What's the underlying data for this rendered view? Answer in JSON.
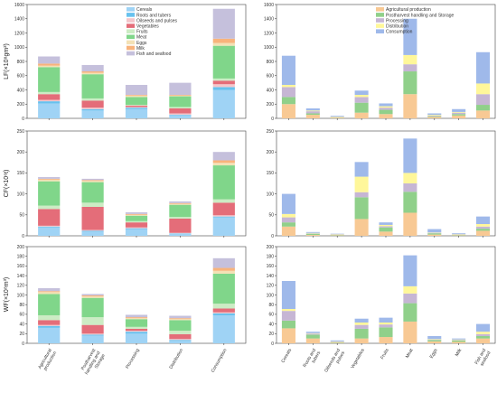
{
  "colors": {
    "Cereals": "#9fd3f5",
    "Roots and tubers": "#67c1ee",
    "Oilseeds and pulses": "#f4c6cb",
    "Vegetables": "#e46d79",
    "Fruits": "#ccecc4",
    "Meat": "#80d68a",
    "Eggs": "#f3e1b5",
    "Milk": "#f8b37b",
    "Fish and seafood": "#c5c0dc",
    "Agricultural production": "#f8c994",
    "Postharvest handling and Storage": "#90d08a",
    "Processing": "#c6b6d4",
    "Distribution": "#fff79a",
    "Consumption": "#9fb9ea"
  },
  "legends": {
    "left": [
      "Cereals",
      "Roots and tubers",
      "Oilseeds and pulses",
      "Vegetables",
      "Fruits",
      "Meat",
      "Eggs",
      "Milk",
      "Fish and seafood"
    ],
    "right": [
      "Agricultural production",
      "Postharvest handling and Storage",
      "Processing",
      "Distribution",
      "Consumption"
    ]
  },
  "row_labels": [
    "LF(×10⁸gm²)",
    "CF(×10⁶t)",
    "WF(×10⁸m³)"
  ],
  "chart_data": [
    {
      "type": "bar",
      "stacked": true,
      "categories": [
        "Agricultural production",
        "Postharvest handling and Storage",
        "Processing",
        "Distribution",
        "Consumption"
      ],
      "ylabel": "LF(×10⁸gm²)",
      "ylim": [
        0,
        1600
      ],
      "yticks": [
        0,
        200,
        400,
        600,
        800,
        1000,
        1200,
        1400,
        1600
      ],
      "series": [
        {
          "name": "Cereals",
          "values": [
            210,
            110,
            130,
            40,
            400
          ]
        },
        {
          "name": "Roots and tubers",
          "values": [
            30,
            20,
            20,
            10,
            40
          ]
        },
        {
          "name": "Oilseeds and pulses",
          "values": [
            20,
            20,
            10,
            20,
            40
          ]
        },
        {
          "name": "Vegetables",
          "values": [
            80,
            100,
            20,
            70,
            50
          ]
        },
        {
          "name": "Fruits",
          "values": [
            30,
            30,
            10,
            20,
            30
          ]
        },
        {
          "name": "Meat",
          "values": [
            350,
            340,
            110,
            150,
            460
          ]
        },
        {
          "name": "Eggs",
          "values": [
            20,
            20,
            20,
            10,
            40
          ]
        },
        {
          "name": "Milk",
          "values": [
            30,
            20,
            10,
            10,
            60
          ]
        },
        {
          "name": "Fish and seafood",
          "values": [
            100,
            90,
            140,
            170,
            420
          ]
        }
      ]
    },
    {
      "type": "bar",
      "stacked": true,
      "categories": [
        "Cereals",
        "Roots and tubers",
        "Oilseeds and pulses",
        "Vegetables",
        "Fruits",
        "Meat",
        "Eggs",
        "Milk",
        "Fish and seafood"
      ],
      "ylim": [
        0,
        1600
      ],
      "yticks": [
        0,
        200,
        400,
        600,
        800,
        1000,
        1200,
        1400,
        1600
      ],
      "series": [
        {
          "name": "Agricultural production",
          "values": [
            200,
            50,
            10,
            80,
            60,
            340,
            20,
            40,
            110
          ]
        },
        {
          "name": "Postharvest handling and Storage",
          "values": [
            100,
            20,
            5,
            140,
            60,
            320,
            10,
            20,
            80
          ]
        },
        {
          "name": "Processing",
          "values": [
            140,
            30,
            5,
            80,
            30,
            100,
            10,
            20,
            150
          ]
        },
        {
          "name": "Distribution",
          "values": [
            30,
            10,
            5,
            30,
            20,
            130,
            10,
            10,
            150
          ]
        },
        {
          "name": "Consumption",
          "values": [
            410,
            30,
            10,
            60,
            40,
            510,
            20,
            40,
            440
          ]
        }
      ]
    },
    {
      "type": "bar",
      "stacked": true,
      "categories": [
        "Agricultural production",
        "Postharvest handling and Storage",
        "Processing",
        "Distribution",
        "Consumption"
      ],
      "ylabel": "CF(×10⁶t)",
      "ylim": [
        0,
        250
      ],
      "yticks": [
        0,
        50,
        100,
        150,
        200,
        250
      ],
      "series": [
        {
          "name": "Cereals",
          "values": [
            20,
            10,
            16,
            5,
            44
          ]
        },
        {
          "name": "Roots and tubers",
          "values": [
            2,
            2,
            2,
            1,
            2
          ]
        },
        {
          "name": "Oilseeds and pulses",
          "values": [
            2,
            2,
            2,
            1,
            3
          ]
        },
        {
          "name": "Vegetables",
          "values": [
            40,
            55,
            12,
            34,
            30
          ]
        },
        {
          "name": "Fruits",
          "values": [
            8,
            10,
            3,
            4,
            8
          ]
        },
        {
          "name": "Meat",
          "values": [
            58,
            49,
            13,
            29,
            81
          ]
        },
        {
          "name": "Eggs",
          "values": [
            4,
            3,
            2,
            2,
            6
          ]
        },
        {
          "name": "Milk",
          "values": [
            2,
            2,
            2,
            2,
            6
          ]
        },
        {
          "name": "Fish and seafood",
          "values": [
            4,
            3,
            4,
            4,
            20
          ]
        }
      ]
    },
    {
      "type": "bar",
      "stacked": true,
      "categories": [
        "Cereals",
        "Roots and tubers",
        "Oilseeds and pulses",
        "Vegetables",
        "Fruits",
        "Meat",
        "Eggs",
        "Milk",
        "Fish and seafood"
      ],
      "ylim": [
        0,
        250
      ],
      "yticks": [
        0,
        50,
        100,
        150,
        200,
        250
      ],
      "series": [
        {
          "name": "Agricultural production",
          "values": [
            22,
            2,
            1,
            40,
            10,
            55,
            3,
            1,
            12
          ]
        },
        {
          "name": "Postharvest handling and Storage",
          "values": [
            10,
            3,
            1,
            52,
            10,
            50,
            3,
            1,
            5
          ]
        },
        {
          "name": "Processing",
          "values": [
            12,
            1,
            1,
            12,
            3,
            20,
            1,
            1,
            5
          ]
        },
        {
          "name": "Distribution",
          "values": [
            8,
            1,
            1,
            37,
            3,
            25,
            1,
            1,
            6
          ]
        },
        {
          "name": "Consumption",
          "values": [
            48,
            2,
            1,
            35,
            6,
            82,
            8,
            2,
            18
          ]
        }
      ]
    },
    {
      "type": "bar",
      "stacked": true,
      "categories": [
        "Agricultural production",
        "Postharvest handling and Storage",
        "Processing",
        "Distribution",
        "Consumption"
      ],
      "ylabel": "WF(×10⁸m³)",
      "ylim": [
        0,
        200
      ],
      "yticks": [
        0,
        20,
        40,
        60,
        80,
        100,
        120,
        140,
        160,
        180,
        200
      ],
      "series": [
        {
          "name": "Cereals",
          "values": [
            32,
            16,
            20,
            5,
            58
          ]
        },
        {
          "name": "Roots and tubers",
          "values": [
            4,
            2,
            4,
            2,
            4
          ]
        },
        {
          "name": "Oilseeds and pulses",
          "values": [
            2,
            2,
            2,
            2,
            2
          ]
        },
        {
          "name": "Vegetables",
          "values": [
            10,
            18,
            4,
            10,
            8
          ]
        },
        {
          "name": "Fruits",
          "values": [
            10,
            16,
            4,
            7,
            10
          ]
        },
        {
          "name": "Meat",
          "values": [
            44,
            40,
            16,
            22,
            62
          ]
        },
        {
          "name": "Eggs",
          "values": [
            4,
            3,
            2,
            2,
            6
          ]
        },
        {
          "name": "Milk",
          "values": [
            2,
            2,
            2,
            2,
            6
          ]
        },
        {
          "name": "Fish and seafood",
          "values": [
            6,
            3,
            5,
            5,
            20
          ]
        }
      ]
    },
    {
      "type": "bar",
      "stacked": true,
      "categories": [
        "Cereals",
        "Roots and tubers",
        "Oilseeds and pulses",
        "Vegetables",
        "Fruits",
        "Meat",
        "Eggs",
        "Milk",
        "Fish and seafood"
      ],
      "ylim": [
        0,
        200
      ],
      "yticks": [
        0,
        20,
        40,
        60,
        80,
        100,
        120,
        140,
        160,
        180,
        200
      ],
      "series": [
        {
          "name": "Agricultural production",
          "values": [
            31,
            10,
            1,
            10,
            13,
            45,
            4,
            3,
            10
          ]
        },
        {
          "name": "Postharvest handling and Storage",
          "values": [
            16,
            8,
            1,
            20,
            20,
            38,
            3,
            3,
            5
          ]
        },
        {
          "name": "Processing",
          "values": [
            20,
            2,
            1,
            8,
            6,
            20,
            1,
            1,
            4
          ]
        },
        {
          "name": "Distribution",
          "values": [
            4,
            1,
            1,
            5,
            4,
            15,
            1,
            1,
            5
          ]
        },
        {
          "name": "Consumption",
          "values": [
            58,
            3,
            2,
            8,
            10,
            64,
            6,
            2,
            16
          ]
        }
      ]
    }
  ]
}
